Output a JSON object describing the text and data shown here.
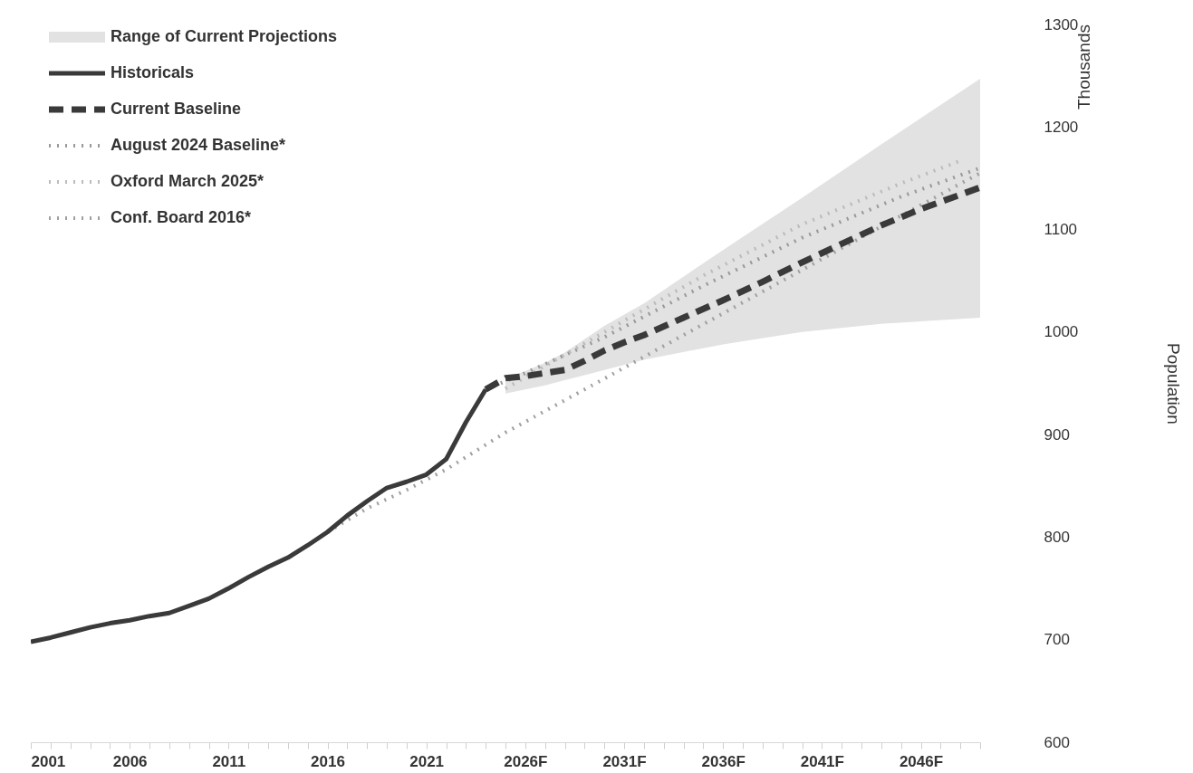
{
  "chart_data": {
    "type": "line",
    "ylabel": "Population",
    "annotations": [
      "Thousands"
    ],
    "legend": "top left",
    "xlim": [
      2001,
      2049
    ],
    "ylim": [
      600,
      1300
    ],
    "yticks": [
      600,
      700,
      800,
      900,
      1000,
      1100,
      1200,
      1300
    ],
    "xticks": [
      2001,
      {
        "value": 2002,
        "label": null
      },
      {
        "value": 2003,
        "label": null
      },
      {
        "value": 2004,
        "label": null
      },
      {
        "value": 2005,
        "label": null
      },
      2006,
      {
        "value": 2007,
        "label": null
      },
      {
        "value": 2008,
        "label": null
      },
      {
        "value": 2009,
        "label": null
      },
      {
        "value": 2010,
        "label": null
      },
      2011,
      {
        "value": 2012,
        "label": null
      },
      {
        "value": 2013,
        "label": null
      },
      {
        "value": 2014,
        "label": null
      },
      {
        "value": 2015,
        "label": null
      },
      2016,
      {
        "value": 2017,
        "label": null
      },
      {
        "value": 2018,
        "label": null
      },
      {
        "value": 2019,
        "label": null
      },
      {
        "value": 2020,
        "label": null
      },
      2021,
      {
        "value": 2022,
        "label": null
      },
      {
        "value": 2023,
        "label": null
      },
      {
        "value": 2024,
        "label": null
      },
      {
        "value": 2025,
        "label": null
      },
      {
        "value": 2026,
        "label": "2026F"
      },
      {
        "value": 2027,
        "label": null
      },
      {
        "value": 2028,
        "label": null
      },
      {
        "value": 2029,
        "label": null
      },
      {
        "value": 2030,
        "label": null
      },
      {
        "value": 2031,
        "label": "2031F"
      },
      {
        "value": 2032,
        "label": null
      },
      {
        "value": 2033,
        "label": null
      },
      {
        "value": 2034,
        "label": null
      },
      {
        "value": 2035,
        "label": null
      },
      {
        "value": 2036,
        "label": "2036F"
      },
      {
        "value": 2037,
        "label": null
      },
      {
        "value": 2038,
        "label": null
      },
      {
        "value": 2039,
        "label": null
      },
      {
        "value": 2040,
        "label": null
      },
      {
        "value": 2041,
        "label": "2041F"
      },
      {
        "value": 2042,
        "label": null
      },
      {
        "value": 2043,
        "label": null
      },
      {
        "value": 2044,
        "label": null
      },
      {
        "value": 2045,
        "label": null
      },
      {
        "value": 2046,
        "label": "2046F"
      },
      {
        "value": 2047,
        "label": null
      },
      {
        "value": 2048,
        "label": null
      },
      {
        "value": 2049,
        "label": null
      }
    ],
    "series": [
      {
        "name": "Range of Current Projections",
        "type": "area",
        "color": "#e2e2e2",
        "x": [
          2025,
          2026,
          2027,
          2028,
          2029,
          2030,
          2032,
          2036,
          2040,
          2044,
          2049
        ],
        "values": [
          null,
          null,
          null,
          null,
          null,
          null,
          null,
          null,
          null,
          null,
          null
        ],
        "lower": [
          940,
          944,
          948,
          953,
          958,
          963,
          973,
          988,
          1000,
          1008,
          1014
        ],
        "upper": [
          955,
          962,
          970,
          980,
          993,
          1006,
          1028,
          1080,
          1131,
          1183,
          1247
        ]
      },
      {
        "name": "Historicals",
        "type": "line",
        "line_style": "solid",
        "color": "#3a3a3a",
        "x": [
          2001,
          2002,
          2003,
          2004,
          2005,
          2006,
          2007,
          2008,
          2009,
          2010,
          2011,
          2012,
          2013,
          2014,
          2015,
          2016,
          2017,
          2018,
          2019,
          2020,
          2021,
          2022,
          2023,
          2024
        ],
        "values": [
          698,
          702,
          707,
          712,
          716,
          719,
          723,
          726,
          733,
          740,
          750,
          761,
          771,
          780,
          792,
          805,
          821,
          835,
          848,
          854,
          861,
          876,
          912,
          944
        ]
      },
      {
        "name": "Current Baseline",
        "type": "line",
        "line_style": "dashed",
        "color": "#3a3a3a",
        "x": [
          2024,
          2025,
          2026,
          2027,
          2028,
          2029,
          2030,
          2031,
          2032,
          2034,
          2036,
          2038,
          2040,
          2042,
          2044,
          2046,
          2049
        ],
        "values": [
          944,
          955,
          957,
          960,
          963,
          972,
          982,
          990,
          997,
          1014,
          1031,
          1049,
          1068,
          1086,
          1104,
          1120,
          1141
        ]
      },
      {
        "name": "August 2024 Baseline*",
        "type": "line",
        "line_style": "dotted",
        "color": "#999999",
        "x": [
          2024,
          2026,
          2030,
          2035,
          2040,
          2045,
          2049
        ],
        "values": [
          944,
          960,
          995,
          1045,
          1092,
          1132,
          1160
        ]
      },
      {
        "name": "Oxford March 2025*",
        "type": "line",
        "line_style": "dotted",
        "color": "#bbbbbb",
        "x": [
          2025,
          2030,
          2035,
          2040,
          2045,
          2048
        ],
        "values": [
          945,
          1000,
          1055,
          1105,
          1145,
          1167
        ]
      },
      {
        "name": "Conf. Board 2016*",
        "type": "line",
        "line_style": "dotted",
        "color": "#a0a0a0",
        "x": [
          2016,
          2018,
          2020,
          2022,
          2025,
          2029,
          2034,
          2039,
          2044,
          2049
        ],
        "values": [
          805,
          828,
          846,
          866,
          902,
          944,
          997,
          1050,
          1103,
          1155
        ]
      }
    ]
  }
}
